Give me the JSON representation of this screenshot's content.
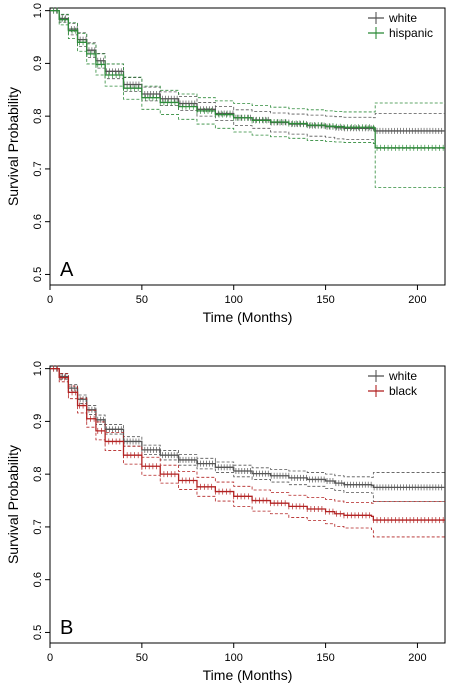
{
  "chart_data": [
    {
      "type": "line",
      "panel_label": "A",
      "xlabel": "Time (Months)",
      "ylabel": "Survival Probability",
      "xlim": [
        0,
        215
      ],
      "ylim": [
        0.48,
        1.005
      ],
      "x_ticks": [
        0,
        50,
        100,
        150,
        200
      ],
      "y_ticks": [
        0.5,
        0.6,
        0.7,
        0.8,
        0.9,
        1.0
      ],
      "y_tick_labels": [
        "0.5",
        "0.6",
        "0.7",
        "0.8",
        "0.9",
        "1.0"
      ],
      "grid": false,
      "legend_position": "top-right",
      "series": [
        {
          "name": "white",
          "color": "#555555",
          "x": [
            0,
            5,
            10,
            15,
            20,
            25,
            30,
            40,
            50,
            60,
            70,
            80,
            90,
            100,
            110,
            120,
            130,
            140,
            150,
            155,
            160,
            176,
            177,
            215
          ],
          "y": [
            1.0,
            0.985,
            0.965,
            0.945,
            0.925,
            0.905,
            0.885,
            0.86,
            0.842,
            0.833,
            0.824,
            0.813,
            0.805,
            0.797,
            0.793,
            0.788,
            0.785,
            0.782,
            0.78,
            0.778,
            0.777,
            0.776,
            0.772,
            0.772
          ],
          "ci_upper": [
            1.0,
            0.992,
            0.976,
            0.958,
            0.939,
            0.919,
            0.899,
            0.873,
            0.855,
            0.846,
            0.837,
            0.826,
            0.818,
            0.812,
            0.809,
            0.806,
            0.804,
            0.802,
            0.8,
            0.799,
            0.798,
            0.797,
            0.805,
            0.805
          ],
          "ci_lower": [
            1.0,
            0.978,
            0.954,
            0.932,
            0.911,
            0.891,
            0.871,
            0.847,
            0.829,
            0.82,
            0.811,
            0.8,
            0.792,
            0.782,
            0.777,
            0.77,
            0.766,
            0.762,
            0.76,
            0.757,
            0.756,
            0.755,
            0.739,
            0.739
          ]
        },
        {
          "name": "hispanic",
          "color": "#2e8b3a",
          "x": [
            0,
            5,
            10,
            15,
            20,
            25,
            30,
            40,
            50,
            60,
            70,
            80,
            90,
            100,
            110,
            120,
            130,
            140,
            150,
            155,
            160,
            176,
            177,
            215
          ],
          "y": [
            1.0,
            0.983,
            0.962,
            0.94,
            0.918,
            0.898,
            0.878,
            0.853,
            0.835,
            0.826,
            0.818,
            0.81,
            0.803,
            0.797,
            0.792,
            0.789,
            0.786,
            0.783,
            0.781,
            0.78,
            0.779,
            0.778,
            0.74,
            0.74
          ],
          "ci_upper": [
            1.0,
            0.993,
            0.977,
            0.957,
            0.937,
            0.918,
            0.899,
            0.874,
            0.857,
            0.849,
            0.842,
            0.835,
            0.829,
            0.824,
            0.82,
            0.817,
            0.814,
            0.812,
            0.81,
            0.809,
            0.808,
            0.808,
            0.825,
            0.825
          ],
          "ci_lower": [
            1.0,
            0.973,
            0.947,
            0.923,
            0.899,
            0.878,
            0.857,
            0.832,
            0.813,
            0.803,
            0.794,
            0.785,
            0.777,
            0.77,
            0.764,
            0.761,
            0.758,
            0.754,
            0.752,
            0.751,
            0.75,
            0.748,
            0.665,
            0.665
          ]
        }
      ]
    },
    {
      "type": "line",
      "panel_label": "B",
      "xlabel": "Time (Months)",
      "ylabel": "Survival Probability",
      "xlim": [
        0,
        215
      ],
      "ylim": [
        0.48,
        1.005
      ],
      "x_ticks": [
        0,
        50,
        100,
        150,
        200
      ],
      "y_ticks": [
        0.5,
        0.6,
        0.7,
        0.8,
        0.9,
        1.0
      ],
      "y_tick_labels": [
        "0.5",
        "0.6",
        "0.7",
        "0.8",
        "0.9",
        "1.0"
      ],
      "grid": false,
      "legend_position": "top-right",
      "series": [
        {
          "name": "white",
          "color": "#555555",
          "x": [
            0,
            5,
            10,
            15,
            20,
            25,
            30,
            40,
            50,
            60,
            70,
            80,
            90,
            100,
            110,
            120,
            130,
            140,
            150,
            155,
            160,
            175,
            176,
            215
          ],
          "y": [
            1.0,
            0.985,
            0.963,
            0.942,
            0.922,
            0.903,
            0.885,
            0.862,
            0.846,
            0.836,
            0.827,
            0.82,
            0.813,
            0.806,
            0.801,
            0.797,
            0.793,
            0.79,
            0.787,
            0.783,
            0.78,
            0.779,
            0.775,
            0.775
          ],
          "ci_upper": [
            1.0,
            0.99,
            0.97,
            0.95,
            0.93,
            0.912,
            0.894,
            0.871,
            0.855,
            0.845,
            0.837,
            0.83,
            0.823,
            0.817,
            0.812,
            0.809,
            0.806,
            0.803,
            0.8,
            0.797,
            0.795,
            0.794,
            0.803,
            0.803
          ],
          "ci_lower": [
            1.0,
            0.98,
            0.956,
            0.934,
            0.913,
            0.894,
            0.876,
            0.853,
            0.837,
            0.827,
            0.817,
            0.81,
            0.803,
            0.795,
            0.79,
            0.785,
            0.78,
            0.777,
            0.773,
            0.769,
            0.765,
            0.764,
            0.748,
            0.748
          ]
        },
        {
          "name": "black",
          "color": "#b22222",
          "x": [
            0,
            5,
            10,
            15,
            20,
            25,
            30,
            40,
            50,
            60,
            70,
            80,
            90,
            100,
            110,
            120,
            130,
            140,
            150,
            155,
            160,
            175,
            176,
            215
          ],
          "y": [
            1.0,
            0.983,
            0.955,
            0.93,
            0.905,
            0.882,
            0.862,
            0.836,
            0.815,
            0.8,
            0.788,
            0.776,
            0.767,
            0.758,
            0.75,
            0.745,
            0.739,
            0.734,
            0.729,
            0.725,
            0.722,
            0.72,
            0.713,
            0.713
          ],
          "ci_upper": [
            1.0,
            0.991,
            0.967,
            0.944,
            0.921,
            0.899,
            0.879,
            0.853,
            0.832,
            0.817,
            0.805,
            0.794,
            0.785,
            0.777,
            0.77,
            0.765,
            0.76,
            0.756,
            0.752,
            0.749,
            0.746,
            0.745,
            0.748,
            0.748
          ],
          "ci_lower": [
            1.0,
            0.975,
            0.943,
            0.916,
            0.889,
            0.865,
            0.845,
            0.819,
            0.798,
            0.783,
            0.771,
            0.758,
            0.749,
            0.739,
            0.73,
            0.725,
            0.718,
            0.712,
            0.706,
            0.701,
            0.698,
            0.695,
            0.681,
            0.681
          ]
        }
      ]
    }
  ]
}
